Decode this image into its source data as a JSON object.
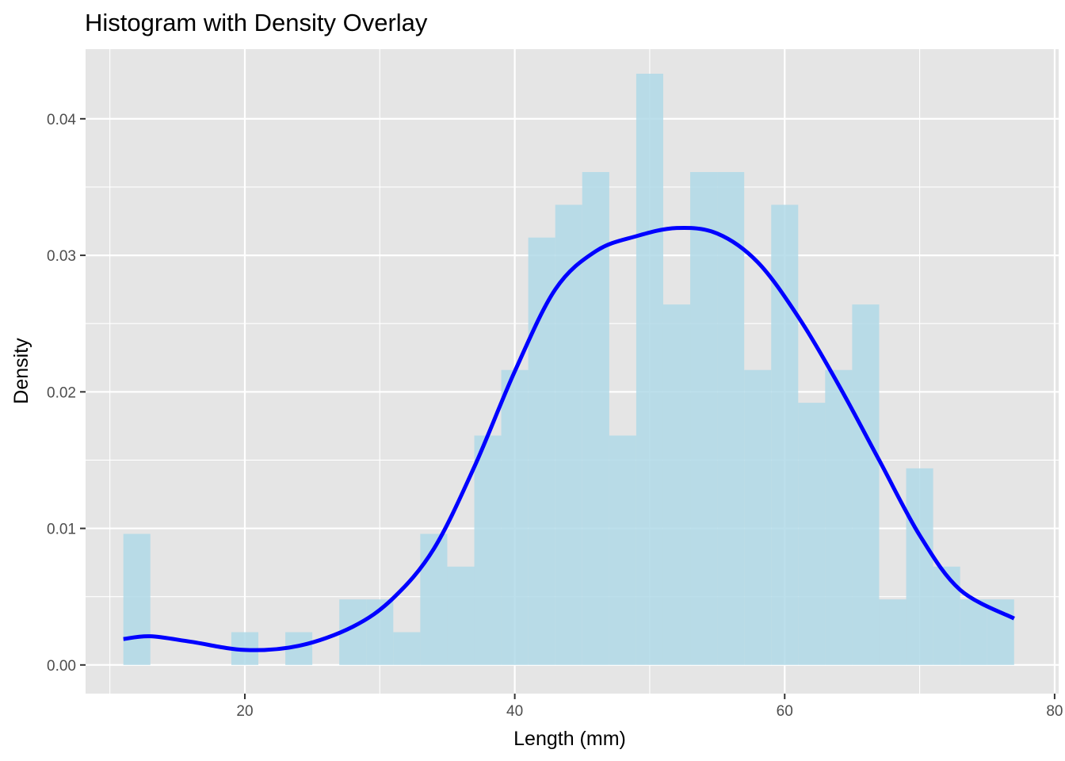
{
  "chart_data": {
    "type": "histogram",
    "title": "Histogram with Density Overlay",
    "xlabel": "Length (mm)",
    "ylabel": "Density",
    "xlim": [
      8.2,
      80.3
    ],
    "ylim": [
      -0.0021,
      0.0451
    ],
    "x_ticks": [
      20,
      40,
      60,
      80
    ],
    "x_tick_labels": [
      "20",
      "40",
      "60",
      "80"
    ],
    "y_ticks": [
      0.0,
      0.01,
      0.02,
      0.03,
      0.04
    ],
    "y_tick_labels": [
      "0.00",
      "0.01",
      "0.02",
      "0.03",
      "0.04"
    ],
    "grid": true,
    "bin_width": 2,
    "bins": [
      {
        "x0": 11,
        "x1": 13,
        "density": 0.0096
      },
      {
        "x0": 13,
        "x1": 15,
        "density": 0
      },
      {
        "x0": 15,
        "x1": 17,
        "density": 0
      },
      {
        "x0": 17,
        "x1": 19,
        "density": 0
      },
      {
        "x0": 19,
        "x1": 21,
        "density": 0.0024
      },
      {
        "x0": 21,
        "x1": 23,
        "density": 0
      },
      {
        "x0": 23,
        "x1": 25,
        "density": 0.0024
      },
      {
        "x0": 25,
        "x1": 27,
        "density": 0
      },
      {
        "x0": 27,
        "x1": 29,
        "density": 0.0048
      },
      {
        "x0": 29,
        "x1": 31,
        "density": 0.0048
      },
      {
        "x0": 31,
        "x1": 33,
        "density": 0.0024
      },
      {
        "x0": 33,
        "x1": 35,
        "density": 0.0096
      },
      {
        "x0": 35,
        "x1": 37,
        "density": 0.0072
      },
      {
        "x0": 37,
        "x1": 39,
        "density": 0.0168
      },
      {
        "x0": 39,
        "x1": 41,
        "density": 0.0216
      },
      {
        "x0": 41,
        "x1": 43,
        "density": 0.0313
      },
      {
        "x0": 43,
        "x1": 45,
        "density": 0.0337
      },
      {
        "x0": 45,
        "x1": 47,
        "density": 0.0361
      },
      {
        "x0": 47,
        "x1": 49,
        "density": 0.0168
      },
      {
        "x0": 49,
        "x1": 51,
        "density": 0.0433
      },
      {
        "x0": 51,
        "x1": 53,
        "density": 0.0264
      },
      {
        "x0": 53,
        "x1": 55,
        "density": 0.0361
      },
      {
        "x0": 55,
        "x1": 57,
        "density": 0.0361
      },
      {
        "x0": 57,
        "x1": 59,
        "density": 0.0216
      },
      {
        "x0": 59,
        "x1": 61,
        "density": 0.0337
      },
      {
        "x0": 61,
        "x1": 63,
        "density": 0.0192
      },
      {
        "x0": 63,
        "x1": 65,
        "density": 0.0216
      },
      {
        "x0": 65,
        "x1": 67,
        "density": 0.0264
      },
      {
        "x0": 67,
        "x1": 69,
        "density": 0.0048
      },
      {
        "x0": 69,
        "x1": 71,
        "density": 0.0144
      },
      {
        "x0": 71,
        "x1": 73,
        "density": 0.0072
      },
      {
        "x0": 73,
        "x1": 75,
        "density": 0.0048
      },
      {
        "x0": 75,
        "x1": 77,
        "density": 0.0048
      }
    ],
    "density_curve": {
      "x": [
        11,
        13,
        16,
        20,
        24,
        28,
        31,
        34,
        37,
        40,
        43,
        46,
        49,
        52,
        55,
        58,
        61,
        64,
        67,
        70,
        73,
        77
      ],
      "y": [
        0.0019,
        0.0021,
        0.0017,
        0.0011,
        0.0014,
        0.0028,
        0.0049,
        0.0085,
        0.0145,
        0.0215,
        0.0275,
        0.0303,
        0.0314,
        0.032,
        0.0316,
        0.0295,
        0.0255,
        0.0205,
        0.015,
        0.0095,
        0.0055,
        0.0034
      ]
    },
    "colors": {
      "bar_fill": "#add8e6",
      "curve": "#0000ff",
      "panel_bg": "#e5e5e5",
      "grid": "#ffffff",
      "tick_text": "#4d4d4d",
      "tick_mark": "#333333"
    }
  }
}
